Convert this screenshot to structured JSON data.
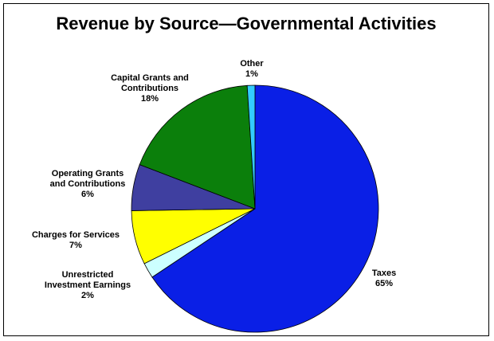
{
  "chart_data": {
    "type": "pie",
    "title": "Revenue by Source—Governmental Activities",
    "slices": [
      {
        "label": [
          "Taxes"
        ],
        "percent_label": "65%",
        "value": 65,
        "color": "#0a1fe6"
      },
      {
        "label": [
          "Unrestricted",
          "Investment Earnings"
        ],
        "percent_label": "2%",
        "value": 2,
        "color": "#ccffff"
      },
      {
        "label": [
          "Charges for Services"
        ],
        "percent_label": "7%",
        "value": 7,
        "color": "#ffff00"
      },
      {
        "label": [
          "Operating Grants",
          "and Contributions"
        ],
        "percent_label": "6%",
        "value": 6,
        "color": "#3f3fa0"
      },
      {
        "label": [
          "Capital Grants and",
          "Contributions"
        ],
        "percent_label": "18%",
        "value": 18,
        "color": "#0b7f0b"
      },
      {
        "label": [
          "Other"
        ],
        "percent_label": "1%",
        "value": 1,
        "color": "#33ccff"
      }
    ]
  }
}
